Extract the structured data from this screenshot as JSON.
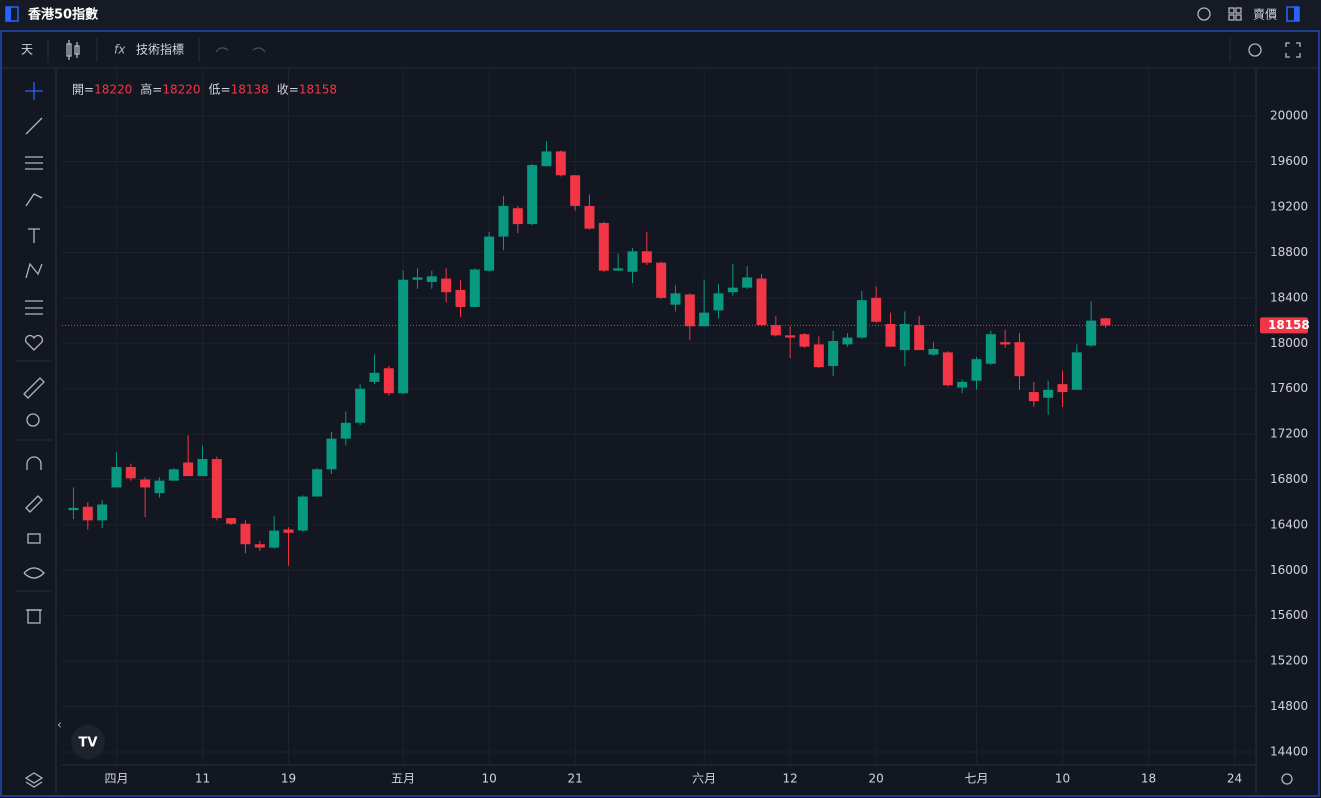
{
  "header": {
    "title": "香港50指數",
    "price_mode": "賣價"
  },
  "toolbar": {
    "interval": "天",
    "indicators": "技術指標"
  },
  "chart_data": {
    "type": "candlestick",
    "ohlc_labels": [
      "開=",
      "高=",
      "低=",
      "收="
    ],
    "up_color": "#089981",
    "down_color": "#f23645",
    "grid": true,
    "xlim": [
      -0.8,
      82.5
    ],
    "ylim": [
      14285,
      20425
    ],
    "yticks": [
      14400,
      14800,
      15200,
      15600,
      16000,
      16400,
      16800,
      17200,
      17600,
      18000,
      18400,
      18800,
      19200,
      19600,
      20000
    ],
    "xticks": [
      {
        "value": 3,
        "label": "四月"
      },
      {
        "value": 9,
        "label": "11"
      },
      {
        "value": 15,
        "label": "19"
      },
      {
        "value": 23,
        "label": "五月"
      },
      {
        "value": 29,
        "label": "10"
      },
      {
        "value": 35,
        "label": "21"
      },
      {
        "value": 44,
        "label": "六月"
      },
      {
        "value": 50,
        "label": "12"
      },
      {
        "value": 56,
        "label": "20"
      },
      {
        "value": 63,
        "label": "七月"
      },
      {
        "value": 69,
        "label": "10"
      },
      {
        "value": 75,
        "label": "18"
      },
      {
        "value": 81,
        "label": "24"
      }
    ],
    "open": [
      16530,
      16560,
      16440,
      16730,
      16910,
      16800,
      16680,
      16790,
      16950,
      16830,
      16980,
      16460,
      16410,
      16230,
      16200,
      16360,
      16350,
      16650,
      16890,
      17160,
      17300,
      17660,
      17780,
      17560,
      18560,
      18540,
      18570,
      18470,
      18320,
      18640,
      18940,
      19190,
      19050,
      19560,
      19690,
      19480,
      19210,
      19060,
      18640,
      18630,
      18810,
      18710,
      18340,
      18430,
      18150,
      18290,
      18450,
      18490,
      18570,
      18160,
      18070,
      18080,
      17990,
      17800,
      17990,
      18050,
      18400,
      18170,
      17940,
      18160,
      17900,
      17920,
      17610,
      17670,
      17820,
      18010,
      18010,
      17570,
      17520,
      17640,
      17590,
      17980,
      18220
    ],
    "high": [
      16730,
      16600,
      16620,
      17040,
      16940,
      16820,
      16820,
      16900,
      17190,
      17100,
      17000,
      16450,
      16440,
      16260,
      16480,
      16380,
      16660,
      16900,
      17220,
      17400,
      17640,
      17900,
      17800,
      18640,
      18660,
      18640,
      18660,
      18560,
      18660,
      18980,
      19300,
      19210,
      19580,
      19780,
      19700,
      19480,
      19310,
      19070,
      18790,
      18840,
      18980,
      18720,
      18510,
      18440,
      18560,
      18520,
      18700,
      18680,
      18610,
      18240,
      18150,
      18090,
      18060,
      18110,
      18090,
      18460,
      18500,
      18270,
      18280,
      18240,
      18010,
      17930,
      17680,
      17880,
      18110,
      18120,
      18090,
      17660,
      17670,
      17760,
      17990,
      18370,
      18220
    ],
    "low": [
      16450,
      16360,
      16370,
      16730,
      16790,
      16470,
      16640,
      16790,
      16830,
      16830,
      16440,
      16400,
      16150,
      16170,
      16190,
      16040,
      16340,
      16650,
      16850,
      17100,
      17280,
      17640,
      17540,
      17550,
      18480,
      18480,
      18360,
      18230,
      18320,
      18630,
      18820,
      18970,
      19040,
      19560,
      19470,
      19170,
      19000,
      18630,
      18640,
      18530,
      18690,
      18390,
      18280,
      18030,
      18150,
      18220,
      18420,
      18480,
      18150,
      18060,
      17870,
      17960,
      17780,
      17710,
      17970,
      18040,
      18180,
      17970,
      17800,
      17940,
      17890,
      17620,
      17560,
      17590,
      17810,
      17960,
      17590,
      17440,
      17370,
      17440,
      17590,
      17970,
      18138
    ],
    "close": [
      16550,
      16440,
      16580,
      16910,
      16810,
      16730,
      16790,
      16890,
      16830,
      16980,
      16460,
      16410,
      16230,
      16200,
      16350,
      16330,
      16650,
      16890,
      17160,
      17300,
      17600,
      17740,
      17560,
      18560,
      18580,
      18590,
      18450,
      18320,
      18650,
      18940,
      19210,
      19050,
      19570,
      19690,
      19480,
      19210,
      19010,
      18640,
      18660,
      18810,
      18710,
      18400,
      18440,
      18150,
      18270,
      18440,
      18490,
      18580,
      18160,
      18070,
      18050,
      17970,
      17790,
      18020,
      18050,
      18380,
      18190,
      17970,
      18170,
      17940,
      17950,
      17630,
      17660,
      17860,
      18080,
      17990,
      17710,
      17490,
      17590,
      17570,
      17920,
      18200,
      18158
    ]
  }
}
